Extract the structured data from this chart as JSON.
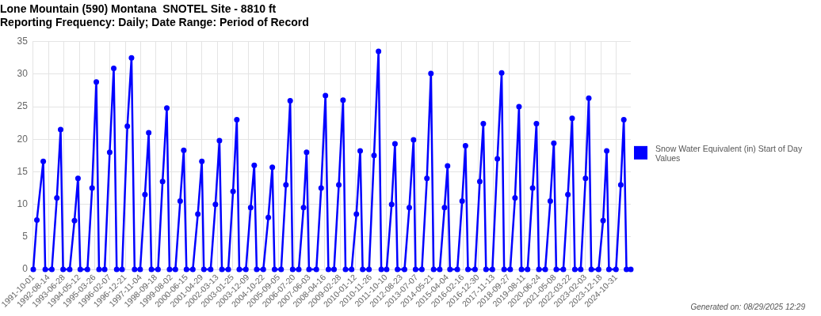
{
  "chart_data": {
    "type": "line",
    "title": "Lone Mountain (590) Montana  SNOTEL Site - 8810 ft",
    "subtitle": "Reporting Frequency: Daily; Date Range: Period of Record",
    "x": [
      "1991-10-01",
      "1991-12-15",
      "1992-04-25",
      "1992-06-05",
      "1992-10-20",
      "1993-02-01",
      "1993-04-20",
      "1993-06-10",
      "1993-10-25",
      "1994-02-01",
      "1994-04-15",
      "1994-06-01",
      "1994-10-28",
      "1995-02-01",
      "1995-04-30",
      "1995-06-25",
      "1995-10-20",
      "1996-02-01",
      "1996-04-25",
      "1996-06-25",
      "1996-10-15",
      "1997-02-01",
      "1997-04-28",
      "1997-07-01",
      "1997-10-25",
      "1998-02-01",
      "1998-04-20",
      "1998-06-15",
      "1998-10-30",
      "1999-02-01",
      "1999-04-30",
      "1999-06-25",
      "1999-10-25",
      "2000-02-01",
      "2000-04-15",
      "2000-06-10",
      "2000-10-20",
      "2001-02-01",
      "2001-04-25",
      "2001-06-05",
      "2001-10-25",
      "2002-02-01",
      "2002-04-25",
      "2002-06-15",
      "2002-10-25",
      "2003-02-01",
      "2003-04-20",
      "2003-06-10",
      "2003-10-25",
      "2004-02-01",
      "2004-04-15",
      "2004-06-05",
      "2004-10-20",
      "2005-02-01",
      "2005-04-25",
      "2005-06-10",
      "2005-10-25",
      "2006-02-01",
      "2006-04-30",
      "2006-06-20",
      "2006-10-25",
      "2007-02-01",
      "2007-04-05",
      "2007-05-25",
      "2007-10-25",
      "2008-02-01",
      "2008-04-30",
      "2008-06-30",
      "2008-10-25",
      "2009-02-01",
      "2009-04-30",
      "2009-06-20",
      "2009-10-25",
      "2010-02-01",
      "2010-04-20",
      "2010-06-10",
      "2010-10-20",
      "2011-02-01",
      "2011-05-05",
      "2011-07-01",
      "2011-10-20",
      "2012-02-01",
      "2012-04-10",
      "2012-06-01",
      "2012-10-25",
      "2013-02-01",
      "2013-04-30",
      "2013-06-10",
      "2013-10-20",
      "2014-02-01",
      "2014-04-25",
      "2014-06-20",
      "2014-10-25",
      "2015-02-01",
      "2015-04-05",
      "2015-05-25",
      "2015-10-25",
      "2016-02-01",
      "2016-04-10",
      "2016-06-01",
      "2016-10-25",
      "2017-02-01",
      "2017-04-15",
      "2017-06-10",
      "2017-10-20",
      "2018-02-01",
      "2018-04-30",
      "2018-06-20",
      "2018-10-25",
      "2019-02-01",
      "2019-04-25",
      "2019-06-15",
      "2019-10-20",
      "2020-02-01",
      "2020-04-20",
      "2020-06-10",
      "2020-10-20",
      "2021-02-01",
      "2021-04-15",
      "2021-06-05",
      "2021-10-30",
      "2022-02-01",
      "2022-04-30",
      "2022-06-25",
      "2022-10-25",
      "2023-02-01",
      "2023-04-10",
      "2023-06-01",
      "2023-10-30",
      "2024-02-01",
      "2024-04-15",
      "2024-06-01",
      "2024-10-25",
      "2025-02-01",
      "2025-04-05",
      "2025-05-30",
      "2025-08-28"
    ],
    "series": [
      {
        "name": "Snow Water Equivalent (in) Start of Day Values",
        "color": "#0000ff",
        "values": [
          0,
          7.6,
          16.6,
          0,
          0,
          11,
          21.5,
          0,
          0,
          7.5,
          14,
          0,
          0,
          12.5,
          28.8,
          0,
          0,
          18,
          30.9,
          0,
          0,
          22,
          32.5,
          0,
          0,
          11.5,
          21,
          0,
          0,
          13.5,
          24.8,
          0,
          0,
          10.5,
          18.3,
          0,
          0,
          8.5,
          16.6,
          0,
          0,
          10,
          19.8,
          0,
          0,
          12,
          23,
          0,
          0,
          9.5,
          16,
          0,
          0,
          8,
          15.7,
          0,
          0,
          13,
          25.9,
          0,
          0,
          9.5,
          18,
          0,
          0,
          12.5,
          26.7,
          0,
          0,
          13,
          26,
          0,
          0,
          8.5,
          18.2,
          0,
          0,
          17.5,
          33.5,
          0,
          0,
          10,
          19.3,
          0,
          0,
          9.5,
          19.9,
          0,
          0,
          14,
          30.1,
          0,
          0,
          9.5,
          15.9,
          0,
          0,
          10.5,
          19,
          0,
          0,
          13.5,
          22.4,
          0,
          0,
          17,
          30.2,
          0,
          0,
          11,
          25,
          0,
          0,
          12.5,
          22.4,
          0,
          0,
          10.5,
          19.4,
          0,
          0,
          11.5,
          23.2,
          0,
          0,
          14,
          26.3,
          0,
          0,
          7.5,
          18.2,
          0,
          0,
          13,
          23,
          0,
          0
        ]
      }
    ],
    "xlim": [
      "1991-10-01",
      "2025-08-28"
    ],
    "xticks": [
      "1991-10-01",
      "1992-08-14",
      "1993-06-28",
      "1994-05-12",
      "1995-03-26",
      "1996-02-07",
      "1996-12-21",
      "1997-11-04",
      "1998-09-18",
      "1999-08-02",
      "2000-06-15",
      "2001-04-29",
      "2002-03-13",
      "2003-01-25",
      "2003-12-09",
      "2004-10-22",
      "2005-09-05",
      "2006-07-20",
      "2007-06-03",
      "2008-04-16",
      "2009-02-28",
      "2010-01-12",
      "2010-11-26",
      "2011-10-10",
      "2012-08-23",
      "2013-07-07",
      "2014-05-21",
      "2015-04-04",
      "2016-02-16",
      "2016-12-30",
      "2017-11-13",
      "2018-09-27",
      "2019-08-11",
      "2020-06-24",
      "2021-05-08",
      "2022-03-22",
      "2023-02-03",
      "2023-12-18",
      "2024-10-31"
    ],
    "ylim": [
      0,
      35
    ],
    "yticks": [
      0,
      5,
      10,
      15,
      20,
      25,
      30,
      35
    ],
    "grid": true,
    "legend": "right",
    "marker": "circle",
    "line_style": "solid",
    "annotations": [
      "Generated on: 08/29/2025 12:29"
    ]
  }
}
